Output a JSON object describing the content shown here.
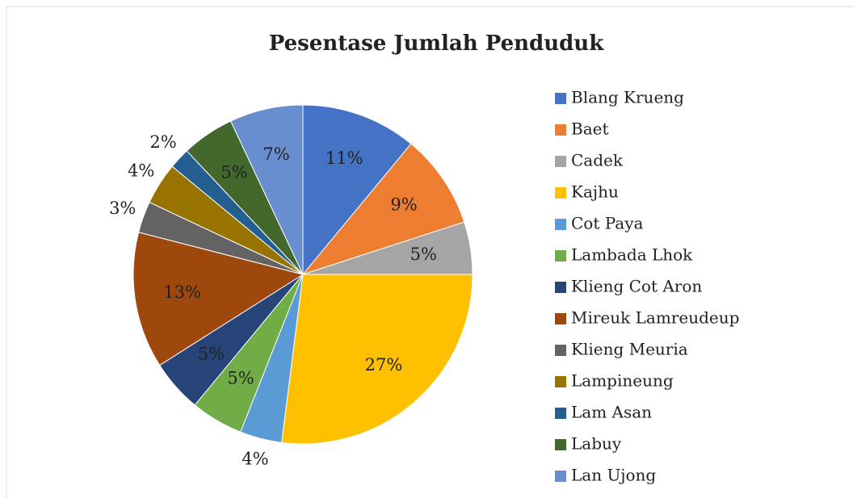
{
  "chart_data": {
    "type": "pie",
    "title": "Pesentase Jumlah Penduduk",
    "categories": [
      "Blang Krueng",
      "Baet",
      "Cadek",
      "Kajhu",
      "Cot Paya",
      "Lambada Lhok",
      "Klieng Cot Aron",
      "Mireuk Lamreudeup",
      "Klieng Meuria",
      "Lampineung",
      "Lam Asan",
      "Labuy",
      "Lan Ujong"
    ],
    "values": [
      11,
      9,
      5,
      27,
      4,
      5,
      5,
      13,
      3,
      4,
      2,
      5,
      7
    ],
    "value_labels": [
      "11%",
      "9%",
      "5%",
      "27%",
      "4%",
      "5%",
      "5%",
      "13%",
      "3%",
      "4%",
      "2%",
      "5%",
      "7%"
    ],
    "colors": [
      "#4472c4",
      "#ed7d31",
      "#a5a5a5",
      "#ffc000",
      "#5b9bd5",
      "#70ad47",
      "#264478",
      "#9e480e",
      "#636363",
      "#997300",
      "#255e91",
      "#43682b",
      "#698ed0"
    ],
    "legend": "right"
  }
}
